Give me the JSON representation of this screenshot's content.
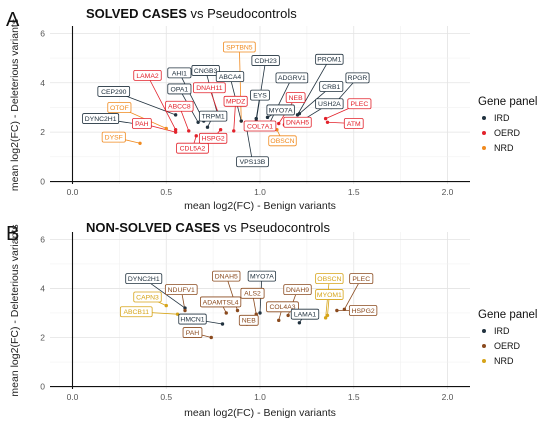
{
  "legend": {
    "title": "Gene panel",
    "items": [
      {
        "name": "IRD",
        "color": "#21323f"
      },
      {
        "name": "OERD",
        "color": "#e2222b"
      },
      {
        "name": "NRD",
        "color": "#f08a1f"
      }
    ]
  },
  "legend2": {
    "title": "Gene panel",
    "items": [
      {
        "name": "IRD",
        "color": "#21323f"
      },
      {
        "name": "OERD",
        "color": "#8a4a1e"
      },
      {
        "name": "NRD",
        "color": "#d6a418"
      }
    ]
  },
  "chart_data": [
    {
      "type": "scatter",
      "panel": "A",
      "title_bold": "SOLVED CASES",
      "title_rest": " vs Pseudocontrols",
      "xlabel": "mean log2(FC) - Benign variants",
      "ylabel": "mean log2(FC) - Deleterious variants",
      "xlim": [
        -0.12,
        2.12
      ],
      "ylim": [
        -0.1,
        6.3
      ],
      "xticks": [
        0.0,
        0.5,
        1.0,
        1.5,
        2.0
      ],
      "xtick_labels": [
        "0.0",
        "0.5",
        "1.0",
        "1.5",
        "2.0"
      ],
      "yticks": [
        0,
        2,
        4,
        6
      ],
      "ytick_labels": [
        "0",
        "2",
        "4",
        "6"
      ],
      "grid": true,
      "points": [
        {
          "gene": "CEP290",
          "x": 0.55,
          "y": 2.7,
          "panel": "IRD",
          "lx": 0.22,
          "ly": 3.65
        },
        {
          "gene": "DYNC2H1",
          "x": 0.37,
          "y": 2.3,
          "panel": "IRD",
          "lx": 0.15,
          "ly": 2.55
        },
        {
          "gene": "DYSF",
          "x": 0.36,
          "y": 1.55,
          "panel": "NRD",
          "lx": 0.22,
          "ly": 1.8
        },
        {
          "gene": "OTOF",
          "x": 0.5,
          "y": 2.15,
          "panel": "NRD",
          "lx": 0.25,
          "ly": 3.0
        },
        {
          "gene": "PAH",
          "x": 0.55,
          "y": 2.0,
          "panel": "OERD",
          "lx": 0.37,
          "ly": 2.35
        },
        {
          "gene": "LAMA2",
          "x": 0.55,
          "y": 2.1,
          "panel": "OERD",
          "lx": 0.4,
          "ly": 4.3
        },
        {
          "gene": "AHI1",
          "x": 0.7,
          "y": 2.45,
          "panel": "IRD",
          "lx": 0.57,
          "ly": 4.4
        },
        {
          "gene": "OPA1",
          "x": 0.67,
          "y": 2.4,
          "panel": "IRD",
          "lx": 0.57,
          "ly": 3.75
        },
        {
          "gene": "ABCC8",
          "x": 0.62,
          "y": 2.05,
          "panel": "OERD",
          "lx": 0.57,
          "ly": 3.05
        },
        {
          "gene": "CDL5A2",
          "x": 0.66,
          "y": 1.85,
          "panel": "OERD",
          "lx": 0.64,
          "ly": 1.35
        },
        {
          "gene": "CNGB3",
          "x": 0.78,
          "y": 2.55,
          "panel": "IRD",
          "lx": 0.71,
          "ly": 4.5
        },
        {
          "gene": "DNAH11",
          "x": 0.79,
          "y": 2.5,
          "panel": "OERD",
          "lx": 0.73,
          "ly": 3.8
        },
        {
          "gene": "TRPM1",
          "x": 0.72,
          "y": 2.2,
          "panel": "IRD",
          "lx": 0.75,
          "ly": 2.65
        },
        {
          "gene": "HSPG2",
          "x": 0.79,
          "y": 2.1,
          "panel": "OERD",
          "lx": 0.75,
          "ly": 1.75
        },
        {
          "gene": "SPTBN5",
          "x": 0.9,
          "y": 2.45,
          "panel": "NRD",
          "lx": 0.89,
          "ly": 5.45
        },
        {
          "gene": "ABCA4",
          "x": 0.9,
          "y": 2.45,
          "panel": "IRD",
          "lx": 0.84,
          "ly": 4.25
        },
        {
          "gene": "MPDZ",
          "x": 0.86,
          "y": 2.05,
          "panel": "OERD",
          "lx": 0.87,
          "ly": 3.25
        },
        {
          "gene": "CDH23",
          "x": 0.98,
          "y": 2.45,
          "panel": "IRD",
          "lx": 1.03,
          "ly": 4.9
        },
        {
          "gene": "EYS",
          "x": 0.98,
          "y": 2.55,
          "panel": "IRD",
          "lx": 1.0,
          "ly": 3.5
        },
        {
          "gene": "COL7A1",
          "x": 0.97,
          "y": 2.2,
          "panel": "OERD",
          "lx": 1.0,
          "ly": 2.25
        },
        {
          "gene": "VPS13B",
          "x": 0.93,
          "y": 2.1,
          "panel": "IRD",
          "lx": 0.96,
          "ly": 0.8
        },
        {
          "gene": "ADGRV1",
          "x": 1.05,
          "y": 2.35,
          "panel": "IRD",
          "lx": 1.17,
          "ly": 4.2
        },
        {
          "gene": "MYO7A",
          "x": 1.04,
          "y": 2.6,
          "panel": "IRD",
          "lx": 1.11,
          "ly": 2.9
        },
        {
          "gene": "NEB",
          "x": 1.1,
          "y": 2.35,
          "panel": "OERD",
          "lx": 1.19,
          "ly": 3.4
        },
        {
          "gene": "OBSCN",
          "x": 1.09,
          "y": 2.1,
          "panel": "NRD",
          "lx": 1.12,
          "ly": 1.65
        },
        {
          "gene": "DNAH5",
          "x": 1.13,
          "y": 2.3,
          "panel": "OERD",
          "lx": 1.2,
          "ly": 2.4
        },
        {
          "gene": "PROM1",
          "x": 1.2,
          "y": 2.7,
          "panel": "IRD",
          "lx": 1.37,
          "ly": 4.95
        },
        {
          "gene": "CRB1",
          "x": 1.21,
          "y": 2.75,
          "panel": "IRD",
          "lx": 1.38,
          "ly": 3.85
        },
        {
          "gene": "USH2A",
          "x": 1.23,
          "y": 2.5,
          "panel": "IRD",
          "lx": 1.37,
          "ly": 3.15
        },
        {
          "gene": "RPGR",
          "x": 1.38,
          "y": 3.0,
          "panel": "IRD",
          "lx": 1.52,
          "ly": 4.2
        },
        {
          "gene": "PLEC",
          "x": 1.35,
          "y": 2.55,
          "panel": "OERD",
          "lx": 1.53,
          "ly": 3.15
        },
        {
          "gene": "ATM",
          "x": 1.36,
          "y": 2.4,
          "panel": "OERD",
          "lx": 1.5,
          "ly": 2.35
        }
      ]
    },
    {
      "type": "scatter",
      "panel": "B",
      "title_bold": "NON-SOLVED CASES",
      "title_rest": " vs Pseudocontrols",
      "xlabel": "mean log2(FC) - Benign variants",
      "ylabel": "mean log2(FC) - Deleterious variants",
      "xlim": [
        -0.12,
        2.12
      ],
      "ylim": [
        -0.1,
        6.3
      ],
      "xticks": [
        0.0,
        0.5,
        1.0,
        1.5,
        2.0
      ],
      "xtick_labels": [
        "0.0",
        "0.5",
        "1.0",
        "1.5",
        "2.0"
      ],
      "yticks": [
        0,
        2,
        4,
        6
      ],
      "ytick_labels": [
        "0",
        "2",
        "4",
        "6"
      ],
      "grid": true,
      "points": [
        {
          "gene": "DYNC2H1",
          "x": 0.6,
          "y": 3.2,
          "panel": "IRD",
          "lx": 0.38,
          "ly": 4.4
        },
        {
          "gene": "CAPN3",
          "x": 0.5,
          "y": 3.3,
          "panel": "NRD",
          "lx": 0.4,
          "ly": 3.65
        },
        {
          "gene": "ABCB11",
          "x": 0.56,
          "y": 2.95,
          "panel": "NRD",
          "lx": 0.34,
          "ly": 3.05
        },
        {
          "gene": "NDUFV1",
          "x": 0.6,
          "y": 3.1,
          "panel": "OERD",
          "lx": 0.58,
          "ly": 3.95
        },
        {
          "gene": "DNAH5",
          "x": 0.88,
          "y": 3.1,
          "panel": "OERD",
          "lx": 0.82,
          "ly": 4.5
        },
        {
          "gene": "ADAMTSL4",
          "x": 0.82,
          "y": 3.0,
          "panel": "OERD",
          "lx": 0.79,
          "ly": 3.45
        },
        {
          "gene": "HMCN1",
          "x": 0.8,
          "y": 2.55,
          "panel": "IRD",
          "lx": 0.64,
          "ly": 2.75
        },
        {
          "gene": "PAH",
          "x": 0.74,
          "y": 2.0,
          "panel": "OERD",
          "lx": 0.64,
          "ly": 2.2
        },
        {
          "gene": "MYO7A",
          "x": 1.0,
          "y": 3.0,
          "panel": "IRD",
          "lx": 1.01,
          "ly": 4.5
        },
        {
          "gene": "ALS2",
          "x": 0.98,
          "y": 2.95,
          "panel": "OERD",
          "lx": 0.96,
          "ly": 3.8
        },
        {
          "gene": "NEB",
          "x": 0.93,
          "y": 2.55,
          "panel": "OERD",
          "lx": 0.94,
          "ly": 2.7
        },
        {
          "gene": "DNAH9",
          "x": 1.15,
          "y": 2.9,
          "panel": "OERD",
          "lx": 1.2,
          "ly": 3.95
        },
        {
          "gene": "COL4A3",
          "x": 1.1,
          "y": 2.7,
          "panel": "OERD",
          "lx": 1.12,
          "ly": 3.25
        },
        {
          "gene": "LAMA1",
          "x": 1.21,
          "y": 2.6,
          "panel": "IRD",
          "lx": 1.24,
          "ly": 2.95
        },
        {
          "gene": "OBSCN",
          "x": 1.35,
          "y": 2.8,
          "panel": "NRD",
          "lx": 1.37,
          "ly": 4.4
        },
        {
          "gene": "MYOM1",
          "x": 1.36,
          "y": 2.9,
          "panel": "NRD",
          "lx": 1.37,
          "ly": 3.75
        },
        {
          "gene": "PLEC",
          "x": 1.45,
          "y": 3.15,
          "panel": "OERD",
          "lx": 1.54,
          "ly": 4.4
        },
        {
          "gene": "HSPG2",
          "x": 1.41,
          "y": 3.1,
          "panel": "OERD",
          "lx": 1.55,
          "ly": 3.1
        }
      ]
    }
  ]
}
